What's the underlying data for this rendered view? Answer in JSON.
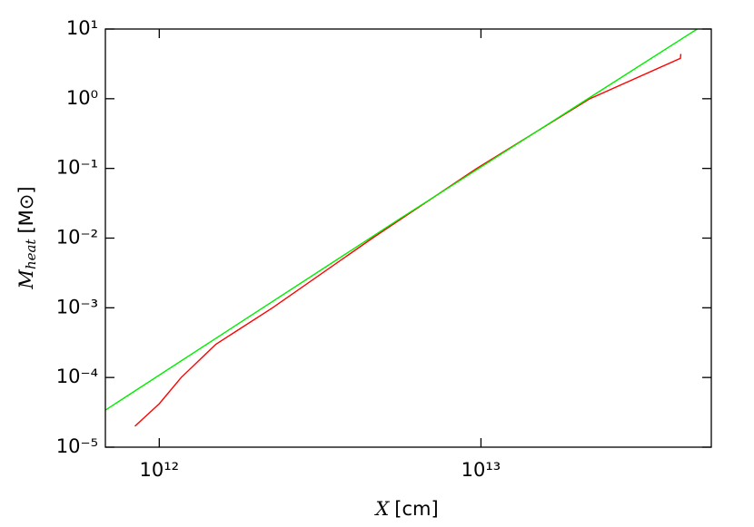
{
  "chart_data": {
    "type": "line",
    "log_x": true,
    "log_y": true,
    "xlabel": {
      "symbol": "X",
      "unit": "[cm]"
    },
    "ylabel": {
      "symbol": "M",
      "subscript": "heat",
      "unit": "[M⊙]"
    },
    "xlim": [
      680000000000,
      52000000000000
    ],
    "ylim": [
      1e-05,
      10
    ],
    "xticks": [
      {
        "value": 1000000000000,
        "label": "10¹²"
      },
      {
        "value": 10000000000000,
        "label": "10¹³"
      }
    ],
    "yticks": [
      {
        "value": 1e-05,
        "label": "10⁻⁵"
      },
      {
        "value": 0.0001,
        "label": "10⁻⁴"
      },
      {
        "value": 0.001,
        "label": "10⁻³"
      },
      {
        "value": 0.01,
        "label": "10⁻²"
      },
      {
        "value": 0.1,
        "label": "10⁻¹"
      },
      {
        "value": 1,
        "label": "10⁰"
      },
      {
        "value": 10,
        "label": "10¹"
      }
    ],
    "series": [
      {
        "color": "#ff0000",
        "x": [
          840000000000,
          1000000000000,
          1170000000000,
          1500000000000,
          2250000000000,
          4600000000000,
          9700000000000,
          21800000000000,
          41700000000000,
          41800000000000
        ],
        "values": [
          2e-05,
          4.2e-05,
          0.0001,
          0.0003,
          0.001,
          0.01,
          0.1,
          1,
          3.8,
          4.4
        ]
      },
      {
        "color": "#00ee00",
        "x": [
          680000000000,
          5600000000000,
          47000000000000
        ],
        "values": [
          3.4e-05,
          0.019,
          10
        ]
      }
    ]
  }
}
